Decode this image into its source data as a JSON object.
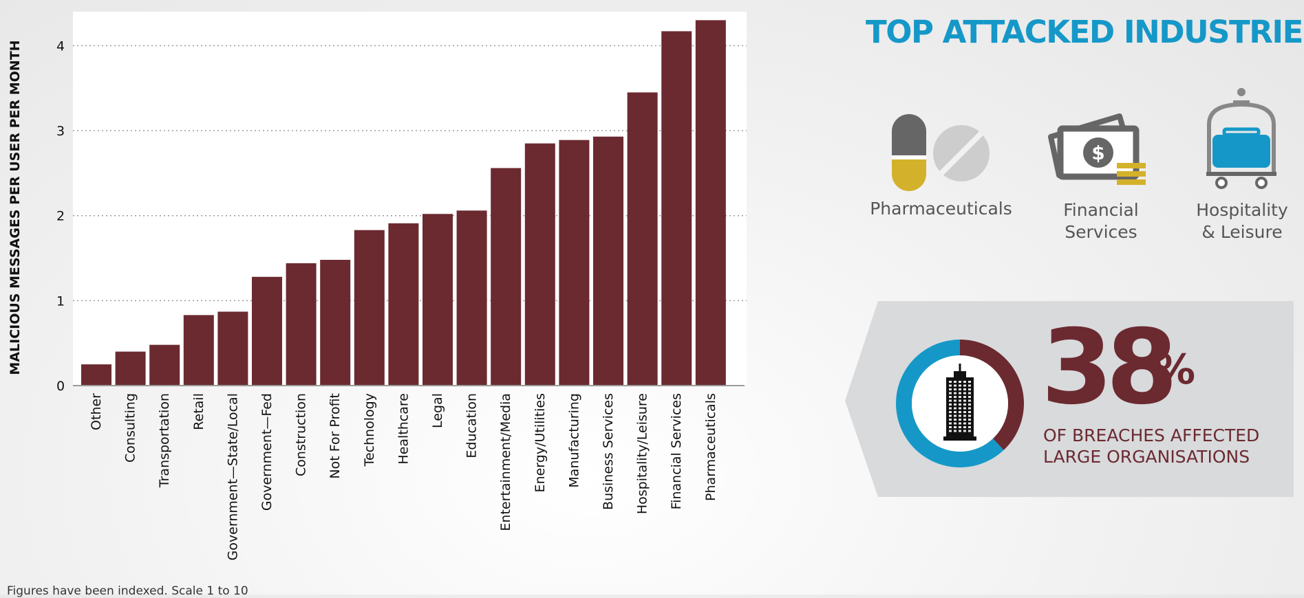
{
  "chart_data": {
    "type": "bar",
    "ylabel": "MALICIOUS MESSAGES PER USER PER MONTH",
    "ylim": [
      0,
      4.4
    ],
    "yticks": [
      0,
      1,
      2,
      3,
      4
    ],
    "grid": true,
    "bar_color": "#6b2a30",
    "categories": [
      "Other",
      "Consulting",
      "Transportation",
      "Retail",
      "Government—State/Local",
      "Government—Fed",
      "Construction",
      "Not For Profit",
      "Technology",
      "Healthcare",
      "Legal",
      "Education",
      "Entertainment/Media",
      "Energy/Utilities",
      "Manufacturing",
      "Business Services",
      "Hospitality/Leisure",
      "Financial Services",
      "Pharmaceuticals"
    ],
    "values": [
      0.25,
      0.4,
      0.48,
      0.83,
      0.87,
      1.28,
      1.44,
      1.48,
      1.83,
      1.91,
      2.02,
      2.06,
      2.56,
      2.85,
      2.89,
      2.93,
      3.45,
      4.17,
      4.3
    ]
  },
  "footnote": "Figures have been indexed. Scale 1 to 10",
  "top_industries": {
    "title": "TOP ATTACKED INDUSTRIES",
    "items": [
      {
        "icon": "pills-icon",
        "label_lines": [
          "Pharmaceuticals"
        ]
      },
      {
        "icon": "money-icon",
        "label_lines": [
          "Financial",
          "Services"
        ]
      },
      {
        "icon": "luggage-cart-icon",
        "label_lines": [
          "Hospitality",
          "& Leisure"
        ]
      }
    ]
  },
  "breaches": {
    "percent_number": "38",
    "percent_sign": "%",
    "percent_value": 38,
    "text_lines": [
      "OF BREACHES AFFECTED",
      "LARGE ORGANISATIONS"
    ],
    "icon": "building-icon",
    "colors": {
      "large": "#6b2a30",
      "other": "#1598c8"
    }
  },
  "colors": {
    "accent_blue": "#1598c8",
    "bar": "#6b2a30",
    "icon_gray": "#666666",
    "icon_yellow": "#d4b12a"
  }
}
